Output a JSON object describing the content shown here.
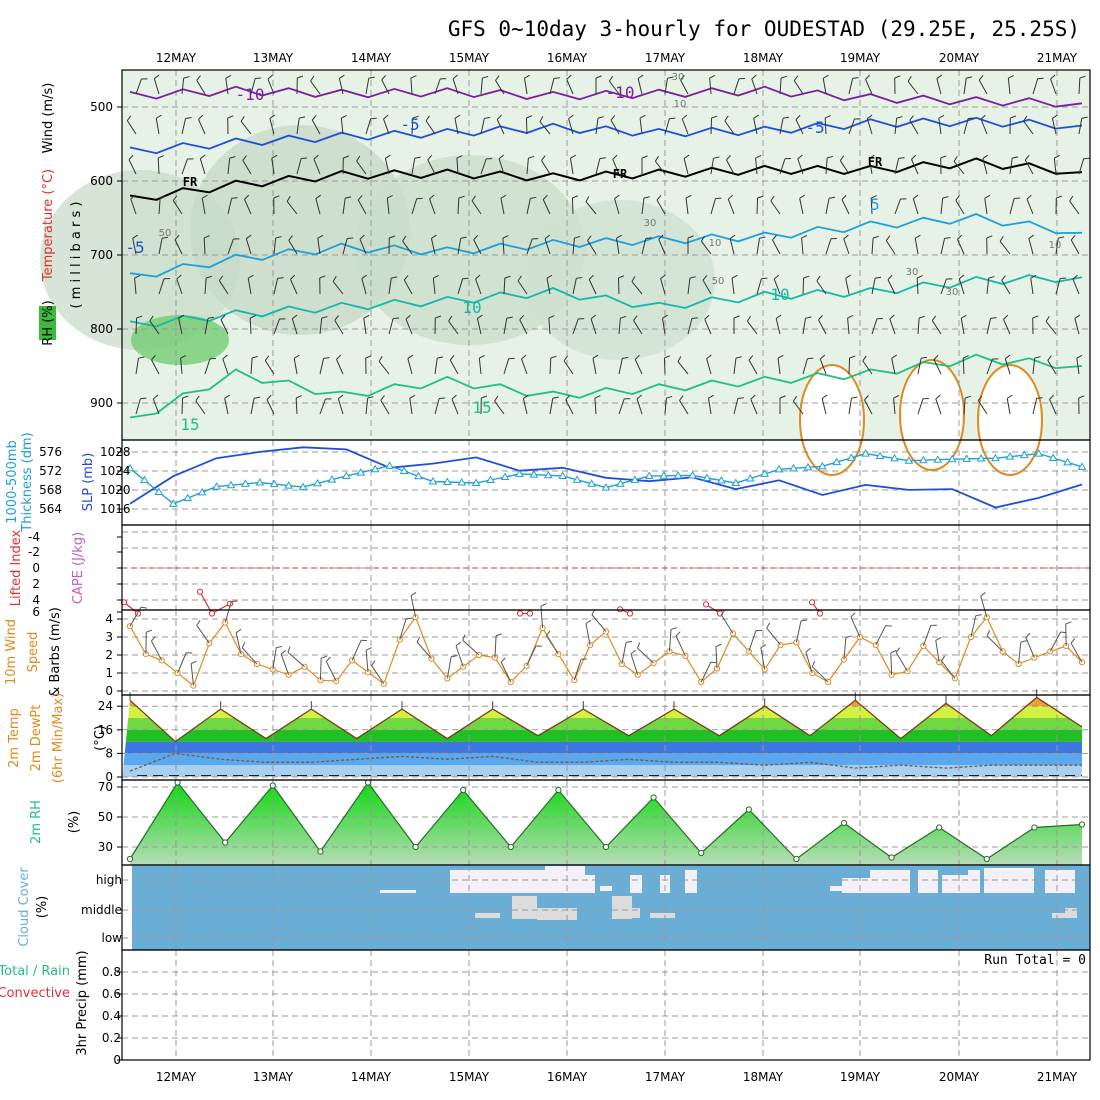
{
  "title": "GFS 0~10day 3-hourly for OUDESTAD (29.25E, 25.25S)",
  "colors": {
    "purple": "#7a1fa2",
    "blue": "#1f4fd8",
    "cyan": "#1fa0d8",
    "teal": "#14b8a6",
    "green": "#1fc080",
    "orange": "#e08a1e",
    "red": "#e03030",
    "cloud": "#6aaed6"
  },
  "chart_data": [
    {
      "type": "contour",
      "panel": "upper-air",
      "x_dates": [
        "12MAY",
        "13MAY",
        "14MAY",
        "15MAY",
        "16MAY",
        "17MAY",
        "18MAY",
        "19MAY",
        "20MAY",
        "21MAY"
      ],
      "ylabel_parts": [
        "Wind (m/s)",
        "Temperature (°C)",
        "RH (%)"
      ],
      "yunit": "( m i l l i b a r s )",
      "y_ticks": [
        "500",
        "600",
        "700",
        "800",
        "900"
      ],
      "ylim": [
        450,
        950
      ],
      "contour_labels": [
        "-10",
        "-10",
        "-5",
        "-5",
        "FR",
        "FR",
        "FR",
        "5",
        "-5",
        "10",
        "10",
        "15",
        "15",
        "50",
        "10",
        "30",
        "30",
        "10",
        "30",
        "50",
        "30",
        "10"
      ],
      "isotherms": [
        {
          "label": "-10",
          "pressure": [
            485,
            478,
            482,
            480,
            485,
            482,
            478,
            488,
            492,
            495
          ]
        },
        {
          "label": "-5",
          "pressure": [
            560,
            548,
            540,
            535,
            528,
            535,
            532,
            522,
            520,
            525
          ]
        },
        {
          "label": "FR",
          "pressure": [
            625,
            605,
            592,
            590,
            595,
            590,
            585,
            585,
            575,
            588
          ]
        },
        {
          "label": "5",
          "pressure": [
            730,
            705,
            690,
            695,
            685,
            680,
            675,
            660,
            650,
            670
          ]
        },
        {
          "label": "10",
          "pressure": [
            795,
            780,
            770,
            762,
            750,
            770,
            755,
            750,
            735,
            730
          ]
        },
        {
          "label": "15",
          "pressure": [
            925,
            860,
            890,
            870,
            890,
            880,
            870,
            860,
            840,
            850
          ]
        }
      ]
    },
    {
      "type": "line",
      "panel": "thickness-slp",
      "ylabel_parts": [
        "1000-500mb",
        "Thickness (dm)",
        "SLP (mb)"
      ],
      "y_left_ticks": [
        "564",
        "568",
        "572",
        "576"
      ],
      "y_right_ticks": [
        "1016",
        "1020",
        "1024",
        "1028"
      ],
      "series": [
        {
          "name": "SLP (mb)",
          "values": [
            1015.7,
            1022.3,
            1026.6,
            1028.1,
            1029.2,
            1028.7,
            1024.3,
            1025.3,
            1026.8,
            1023.6,
            1024.3,
            1021.9,
            1021.1,
            1022.0,
            1019.2,
            1021.3,
            1017.8,
            1020.2,
            1019.0,
            1019.2,
            1014.8,
            1017.1,
            1020.3
          ]
        },
        {
          "name": "1000-500mb Thickness (dm)",
          "values": [
            572.2,
            565.2,
            568.6,
            569.4,
            568.5,
            570.7,
            572.7,
            569.6,
            569.3,
            571.1,
            570.7,
            568.4,
            570.7,
            570.8,
            569.3,
            572.0,
            572.6,
            575.1,
            573.7,
            574.0,
            574.2,
            575.1,
            572.5
          ]
        }
      ]
    },
    {
      "type": "line",
      "panel": "stability",
      "ylabel_parts": [
        "Lifted Index",
        "CAPE (J/kg)"
      ],
      "y_ticks": [
        "-4",
        "-2",
        "0",
        "2",
        "4",
        "6"
      ],
      "series": [
        {
          "name": "Lifted Index",
          "values": [
            4.9,
            6.5,
            3.4,
            6.5,
            5.1,
            6.5,
            6.5,
            5.9,
            6.5,
            5.2,
            6.5,
            4.9,
            6.5
          ]
        }
      ]
    },
    {
      "type": "line",
      "panel": "wind",
      "ylabel_parts": [
        "10m Wind",
        "Speed",
        "& Barbs (m/s)"
      ],
      "y_ticks": [
        "0",
        "1",
        "2",
        "3",
        "4"
      ],
      "series": [
        {
          "name": "10m Wind Speed",
          "values": [
            3.6,
            1.7,
            0.3,
            3.8,
            1.5,
            0.9,
            0.6,
            1.7,
            0.4,
            4.1,
            0.7,
            2.0,
            0.5,
            3.5,
            0.6,
            3.3,
            0.9,
            2.2,
            0.5,
            3.2,
            1.2,
            2.7,
            0.5,
            3.0,
            0.9,
            2.5,
            0.7,
            4.1,
            1.5,
            2.2,
            1.6
          ]
        }
      ]
    },
    {
      "type": "area",
      "panel": "temperature",
      "ylabel_parts": [
        "2m Temp",
        "2m DewPt",
        "(6hr Min/Max)",
        "(°C)"
      ],
      "y_ticks": [
        "0",
        "8",
        "16",
        "24"
      ],
      "series": [
        {
          "name": "2m Temp",
          "values": [
            26,
            12,
            23,
            13,
            23,
            13,
            23,
            13,
            23,
            14,
            23,
            14,
            23,
            14,
            24,
            14,
            26,
            13,
            25,
            14,
            27,
            17
          ]
        },
        {
          "name": "2m DewPt",
          "values": [
            2,
            8,
            6,
            5,
            5,
            6,
            7,
            6,
            7,
            5,
            5,
            6,
            5,
            5,
            4,
            5,
            3,
            4,
            3,
            4,
            4,
            4
          ]
        }
      ]
    },
    {
      "type": "area",
      "panel": "humidity",
      "ylabel_parts": [
        "2m RH",
        "(%)"
      ],
      "y_ticks": [
        "30",
        "50",
        "70"
      ],
      "series": [
        {
          "name": "2m RH",
          "values": [
            22,
            73,
            33,
            71,
            27,
            73,
            30,
            68,
            30,
            68,
            30,
            63,
            26,
            55,
            22,
            46,
            23,
            43,
            22,
            43,
            45
          ]
        }
      ]
    },
    {
      "type": "heatmap",
      "panel": "cloud",
      "ylabel_parts": [
        "Cloud Cover",
        "(%)"
      ],
      "y_ticks": [
        "high",
        "middle",
        "low"
      ]
    },
    {
      "type": "bar",
      "panel": "precip",
      "ylabel_parts": [
        "Total / Rain",
        "Convective",
        "3hr Precip (mm)"
      ],
      "y_ticks": [
        "0",
        "0.2",
        "0.4",
        "0.6",
        "0.8"
      ],
      "annotation": "Run Total = 0",
      "values": []
    }
  ]
}
